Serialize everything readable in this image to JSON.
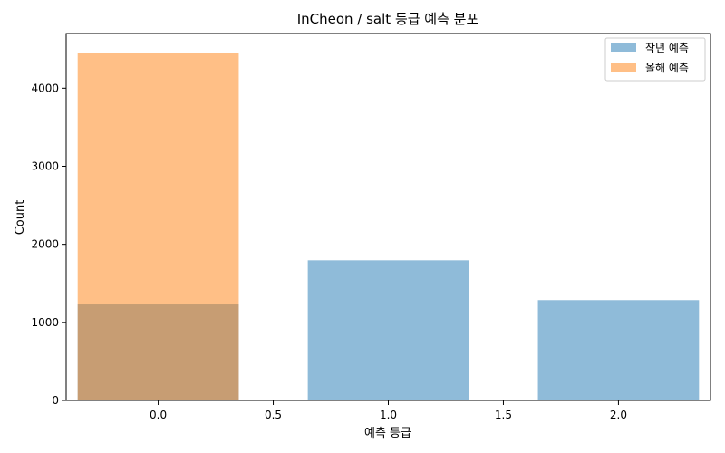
{
  "chart_data": {
    "type": "bar",
    "title": "InCheon / salt 등급 예측 분포",
    "xlabel": "예측 등급",
    "ylabel": "Count",
    "xlim": [
      -0.4,
      2.4
    ],
    "ylim": [
      0,
      4700
    ],
    "x_ticks": [
      "0.0",
      "0.5",
      "1.0",
      "1.5",
      "2.0"
    ],
    "x_tick_values": [
      0.0,
      0.5,
      1.0,
      1.5,
      2.0
    ],
    "y_ticks": [
      "0",
      "1000",
      "2000",
      "3000",
      "4000"
    ],
    "y_tick_values": [
      0,
      1000,
      2000,
      3000,
      4000
    ],
    "bar_width": 0.7,
    "grid": false,
    "legend_position": "top-right",
    "series": [
      {
        "name": "작년 예측",
        "color": "#1f77b4",
        "opacity": 0.5,
        "points": [
          {
            "x": 0,
            "y": 1230
          },
          {
            "x": 1,
            "y": 1795
          },
          {
            "x": 2,
            "y": 1285
          }
        ]
      },
      {
        "name": "올해 예측",
        "color": "#ff7f0e",
        "opacity": 0.5,
        "points": [
          {
            "x": 0,
            "y": 4455
          }
        ]
      }
    ]
  }
}
